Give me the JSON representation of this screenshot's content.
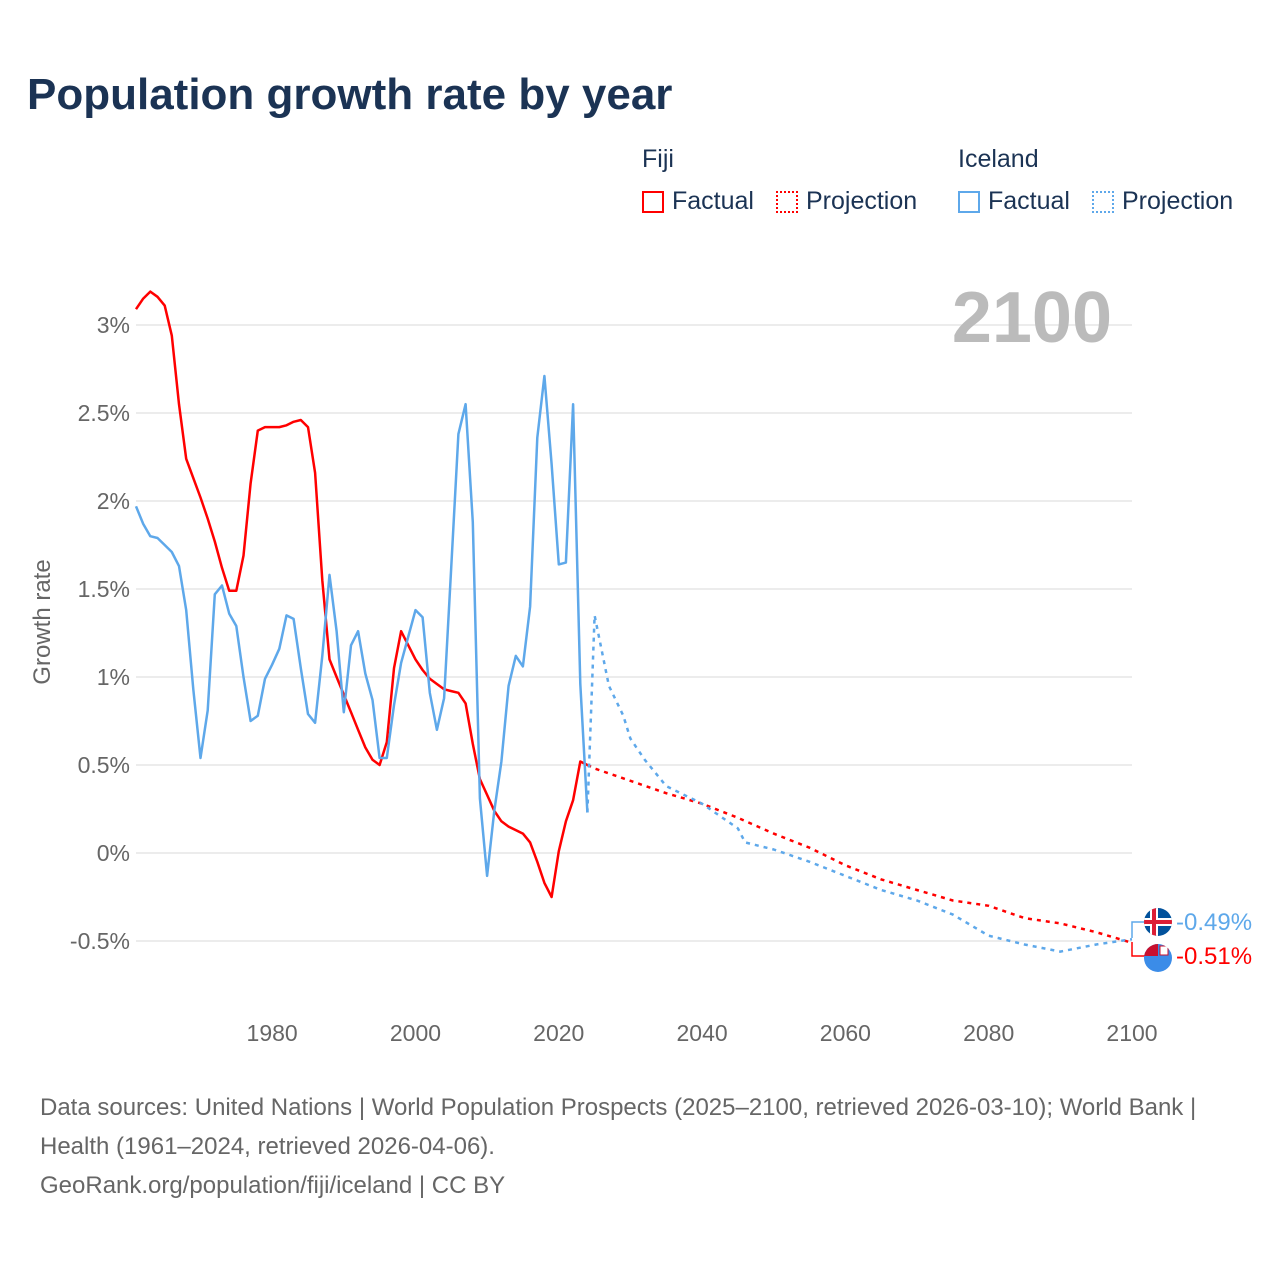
{
  "title": "Population growth rate by year",
  "legend": {
    "groups": [
      {
        "name": "Fiji",
        "color": "#ff0000",
        "items": [
          "Factual",
          "Projection"
        ]
      },
      {
        "name": "Iceland",
        "color": "#5ea8ea",
        "items": [
          "Factual",
          "Projection"
        ]
      }
    ]
  },
  "year_marker": "2100",
  "end_labels": {
    "iceland": "-0.49%",
    "fiji": "-0.51%"
  },
  "footer": {
    "sources": "Data sources: United Nations | World Population Prospects (2025–2100, retrieved 2026-03-10); World Bank | Health (1961–2024, retrieved 2026-04-06).",
    "link": "GeoRank.org/population/fiji/iceland | CC BY"
  },
  "chart_data": {
    "type": "line",
    "title": "Population growth rate by year",
    "xlabel": "",
    "ylabel": "Growth rate",
    "xlim": [
      1961,
      2100
    ],
    "ylim": [
      -0.75,
      3.25
    ],
    "x_ticks": [
      1980,
      2000,
      2020,
      2040,
      2060,
      2080,
      2100
    ],
    "y_ticks": [
      -0.5,
      0,
      0.5,
      1,
      1.5,
      2,
      2.5,
      3
    ],
    "y_tick_labels": [
      "-0.5%",
      "0%",
      "0.5%",
      "1%",
      "1.5%",
      "2%",
      "2.5%",
      "3%"
    ],
    "grid": true,
    "legend_position": "top-right",
    "series": [
      {
        "name": "Fiji Factual",
        "color": "#ff0000",
        "dashed": false,
        "x_start": 1961,
        "values": [
          3.09,
          3.15,
          3.19,
          3.16,
          3.11,
          2.94,
          2.55,
          2.24,
          2.13,
          2.02,
          1.9,
          1.77,
          1.62,
          1.49,
          1.49,
          1.69,
          2.1,
          2.4,
          2.42,
          2.42,
          2.42,
          2.43,
          2.45,
          2.46,
          2.42,
          2.16,
          1.55,
          1.1,
          1.0,
          0.9,
          0.8,
          0.7,
          0.6,
          0.53,
          0.5,
          0.63,
          1.05,
          1.26,
          1.18,
          1.1,
          1.04,
          0.99,
          0.96,
          0.93,
          0.92,
          0.91,
          0.85,
          0.62,
          0.42,
          0.33,
          0.24,
          0.18,
          0.15,
          0.13,
          0.11,
          0.06,
          -0.05,
          -0.17,
          -0.25,
          0.01,
          0.18,
          0.3,
          0.52,
          0.5
        ]
      },
      {
        "name": "Fiji Projection",
        "color": "#ff0000",
        "dashed": true,
        "x": [
          2024,
          2025,
          2030,
          2035,
          2040,
          2045,
          2050,
          2055,
          2060,
          2065,
          2070,
          2075,
          2080,
          2085,
          2090,
          2095,
          2100
        ],
        "values": [
          0.5,
          0.48,
          0.41,
          0.34,
          0.28,
          0.2,
          0.11,
          0.03,
          -0.07,
          -0.15,
          -0.21,
          -0.27,
          -0.3,
          -0.37,
          -0.4,
          -0.45,
          -0.51
        ]
      },
      {
        "name": "Iceland Factual",
        "color": "#5ea8ea",
        "dashed": false,
        "x_start": 1961,
        "values": [
          1.97,
          1.87,
          1.8,
          1.79,
          1.75,
          1.71,
          1.63,
          1.38,
          0.93,
          0.54,
          0.81,
          1.47,
          1.52,
          1.36,
          1.29,
          1.0,
          0.75,
          0.78,
          0.99,
          1.07,
          1.16,
          1.35,
          1.33,
          1.05,
          0.79,
          0.74,
          1.12,
          1.58,
          1.26,
          0.8,
          1.18,
          1.26,
          1.02,
          0.87,
          0.54,
          0.54,
          0.84,
          1.08,
          1.23,
          1.38,
          1.34,
          0.91,
          0.7,
          0.88,
          1.63,
          2.38,
          2.55,
          1.88,
          0.31,
          -0.13,
          0.24,
          0.52,
          0.95,
          1.12,
          1.06,
          1.4,
          2.36,
          2.71,
          2.21,
          1.64,
          1.65,
          2.55,
          0.96,
          0.23
        ]
      },
      {
        "name": "Iceland Projection",
        "color": "#5ea8ea",
        "dashed": true,
        "x": [
          2024,
          2025,
          2027,
          2029,
          2030,
          2032,
          2035,
          2040,
          2045,
          2046,
          2050,
          2055,
          2060,
          2065,
          2070,
          2075,
          2080,
          2085,
          2090,
          2095,
          2100
        ],
        "values": [
          0.23,
          1.35,
          0.95,
          0.78,
          0.65,
          0.53,
          0.38,
          0.28,
          0.14,
          0.06,
          0.02,
          -0.05,
          -0.13,
          -0.21,
          -0.27,
          -0.35,
          -0.47,
          -0.52,
          -0.56,
          -0.52,
          -0.49
        ]
      }
    ]
  }
}
